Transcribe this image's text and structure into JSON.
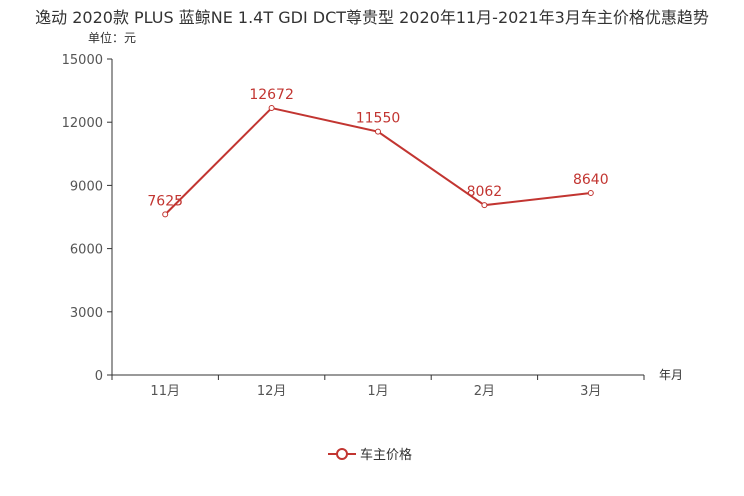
{
  "chart_data": {
    "type": "line",
    "title": "逸动 2020款 PLUS 蓝鲸NE 1.4T GDI DCT尊贵型 2020年11月-2021年3月车主价格优惠趋势",
    "ylabel": "单位：元",
    "xlabel": "年月",
    "categories": [
      "11月",
      "12月",
      "1月",
      "2月",
      "3月"
    ],
    "series": [
      {
        "name": "车主价格",
        "values": [
          7625,
          12672,
          11550,
          8062,
          8640
        ]
      }
    ],
    "ylim": [
      0,
      15000
    ],
    "yticks": [
      0,
      3000,
      6000,
      9000,
      12000,
      15000
    ],
    "legend_position": "bottom-center",
    "grid": false,
    "color": "#c23531"
  }
}
